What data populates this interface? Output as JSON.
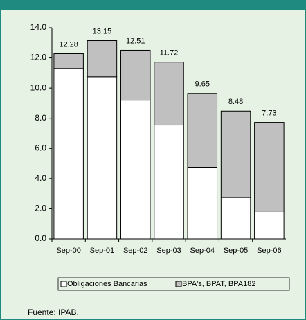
{
  "chart_data": {
    "type": "stacked-bar",
    "categories": [
      "Sep-00",
      "Sep-01",
      "Sep-02",
      "Sep-03",
      "Sep-04",
      "Sep-05",
      "Sep-06"
    ],
    "series": [
      {
        "name": "Obligaciones Bancarias",
        "color": "#ffffff",
        "values": [
          11.3,
          10.75,
          9.2,
          7.55,
          4.75,
          2.75,
          1.85
        ]
      },
      {
        "name": "BPA's, BPAT, BPA182",
        "color": "#c0c0c0",
        "values": [
          0.98,
          2.4,
          3.31,
          4.17,
          4.9,
          5.73,
          5.88
        ]
      }
    ],
    "totals": [
      12.28,
      13.15,
      12.51,
      11.72,
      9.65,
      8.48,
      7.73
    ],
    "ylim": [
      0,
      14
    ],
    "yticks": [
      {
        "value": 0,
        "label": "0.0"
      },
      {
        "value": 2,
        "label": "2.0"
      },
      {
        "value": 4,
        "label": "4.0"
      },
      {
        "value": 6,
        "label": "6.0"
      },
      {
        "value": 8,
        "label": "8.0"
      },
      {
        "value": 10,
        "label": "10.0"
      },
      {
        "value": 12,
        "label": "12.0"
      },
      {
        "value": 14,
        "label": "14.0"
      }
    ],
    "source": "Fuente: IPAB."
  }
}
